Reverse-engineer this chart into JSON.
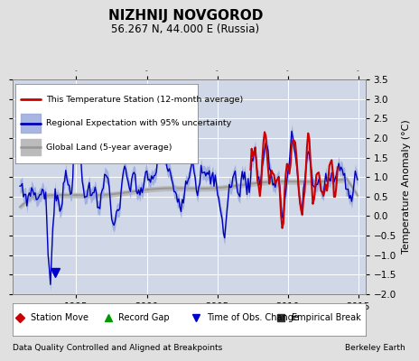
{
  "title": "NIZHNIJ NOVGOROD",
  "subtitle": "56.267 N, 44.000 E (Russia)",
  "ylabel": "Temperature Anomaly (°C)",
  "xlim": [
    1990.5,
    2015.5
  ],
  "ylim": [
    -2.0,
    3.5
  ],
  "yticks": [
    -2,
    -1.5,
    -1,
    -0.5,
    0,
    0.5,
    1,
    1.5,
    2,
    2.5,
    3,
    3.5
  ],
  "xticks": [
    1995,
    2000,
    2005,
    2010,
    2015
  ],
  "bg_color": "#e0e0e0",
  "plot_bg_color": "#d0d8e8",
  "grid_color": "#ffffff",
  "station_color": "#cc0000",
  "regional_color": "#0000bb",
  "regional_fill": "#99aadd",
  "global_color": "#999999",
  "global_fill": "#bbbbbb",
  "footer_left": "Data Quality Controlled and Aligned at Breakpoints",
  "footer_right": "Berkeley Earth",
  "legend_labels": [
    "This Temperature Station (12-month average)",
    "Regional Expectation with 95% uncertainty",
    "Global Land (5-year average)"
  ],
  "marker_labels": [
    "Station Move",
    "Record Gap",
    "Time of Obs. Change",
    "Empirical Break"
  ],
  "marker_colors": [
    "#cc0000",
    "#009900",
    "#0000cc",
    "#333333"
  ],
  "marker_shapes": [
    "D",
    "^",
    "v",
    "s"
  ],
  "obs_change_t": 1993.5,
  "obs_change_v": -1.45
}
